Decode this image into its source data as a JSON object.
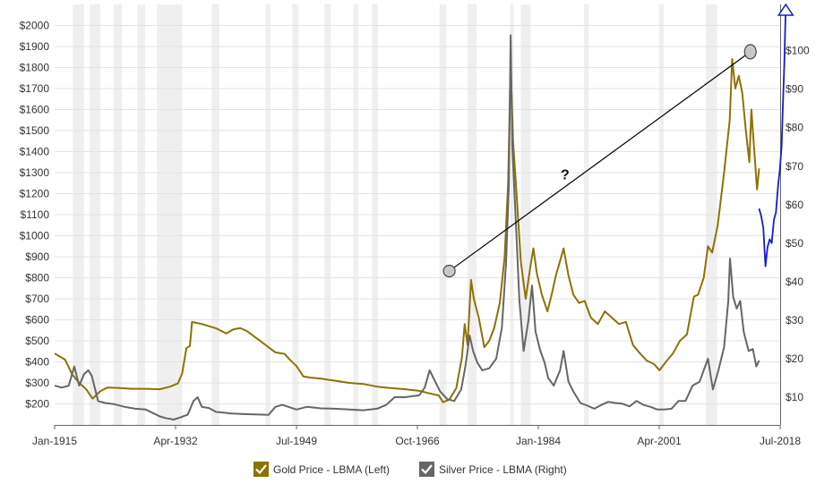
{
  "chart_data": {
    "type": "line",
    "x_range": [
      1915,
      2018.5
    ],
    "left_axis": {
      "ylim": [
        100,
        2100
      ],
      "ticks": [
        200,
        300,
        400,
        500,
        600,
        700,
        800,
        900,
        1000,
        1100,
        1200,
        1300,
        1400,
        1500,
        1600,
        1700,
        1800,
        1900,
        2000
      ],
      "tick_labels": [
        "$200",
        "$300",
        "$400",
        "$500",
        "$600",
        "$700",
        "$800",
        "$900",
        "$1000",
        "$1100",
        "$1200",
        "$1300",
        "$1400",
        "$1500",
        "$1600",
        "$1700",
        "$1800",
        "$1900",
        "$2000"
      ]
    },
    "right_axis": {
      "ylim": [
        2.8,
        112
      ],
      "ticks": [
        10,
        20,
        30,
        40,
        50,
        60,
        70,
        80,
        90,
        100
      ],
      "tick_labels": [
        "$10",
        "$20",
        "$30",
        "$40",
        "$50",
        "$60",
        "$70",
        "$80",
        "$90",
        "$100"
      ]
    },
    "x_ticks": [
      {
        "x": 1915.0,
        "label": "Jan-1915"
      },
      {
        "x": 1932.25,
        "label": "Apr-1932"
      },
      {
        "x": 1949.5,
        "label": "Jul-1949"
      },
      {
        "x": 1966.75,
        "label": "Oct-1966"
      },
      {
        "x": 1984.0,
        "label": "Jan-1984"
      },
      {
        "x": 2001.25,
        "label": "Apr-2001"
      },
      {
        "x": 2018.5,
        "label": "Jul-2018"
      }
    ],
    "recession_bands": [
      [
        1917.6,
        1919.2
      ],
      [
        1920.0,
        1921.5
      ],
      [
        1923.4,
        1924.6
      ],
      [
        1926.8,
        1927.9
      ],
      [
        1929.6,
        1933.2
      ],
      [
        1937.4,
        1938.5
      ],
      [
        1945.1,
        1945.8
      ],
      [
        1948.9,
        1949.8
      ],
      [
        1953.5,
        1954.4
      ],
      [
        1957.6,
        1958.3
      ],
      [
        1960.3,
        1961.1
      ],
      [
        1969.9,
        1970.9
      ],
      [
        1973.9,
        1975.2
      ],
      [
        1980.0,
        1980.5
      ],
      [
        1981.5,
        1982.9
      ],
      [
        1990.5,
        1991.2
      ],
      [
        2001.2,
        2001.9
      ],
      [
        2007.9,
        2009.5
      ]
    ],
    "series": [
      {
        "name": "Gold Price - LBMA (Left)",
        "color": "#8c7306",
        "axis": "left",
        "points": [
          [
            1915,
            440
          ],
          [
            1916.5,
            410
          ],
          [
            1917.5,
            340
          ],
          [
            1918.5,
            300
          ],
          [
            1919.5,
            270
          ],
          [
            1920.4,
            225
          ],
          [
            1921.5,
            260
          ],
          [
            1922.5,
            278
          ],
          [
            1924,
            276
          ],
          [
            1926,
            272
          ],
          [
            1928,
            272
          ],
          [
            1930,
            270
          ],
          [
            1931.5,
            282
          ],
          [
            1932.6,
            298
          ],
          [
            1933.2,
            345
          ],
          [
            1933.8,
            465
          ],
          [
            1934.3,
            475
          ],
          [
            1934.6,
            590
          ],
          [
            1936,
            580
          ],
          [
            1938,
            560
          ],
          [
            1939.5,
            535
          ],
          [
            1940.5,
            555
          ],
          [
            1941.5,
            560
          ],
          [
            1942.5,
            545
          ],
          [
            1943.5,
            520
          ],
          [
            1944.5,
            495
          ],
          [
            1945.5,
            470
          ],
          [
            1946.5,
            445
          ],
          [
            1947.8,
            438
          ],
          [
            1948.5,
            412
          ],
          [
            1949.5,
            380
          ],
          [
            1950.5,
            330
          ],
          [
            1951.5,
            325
          ],
          [
            1953,
            320
          ],
          [
            1955,
            310
          ],
          [
            1957,
            300
          ],
          [
            1959,
            295
          ],
          [
            1961,
            282
          ],
          [
            1963,
            275
          ],
          [
            1965,
            270
          ],
          [
            1967,
            262
          ],
          [
            1968.5,
            250
          ],
          [
            1969.8,
            240
          ],
          [
            1970.4,
            208
          ],
          [
            1971.3,
            220
          ],
          [
            1972.3,
            275
          ],
          [
            1973.1,
            420
          ],
          [
            1973.5,
            580
          ],
          [
            1973.9,
            480
          ],
          [
            1974.4,
            790
          ],
          [
            1974.8,
            700
          ],
          [
            1975.5,
            610
          ],
          [
            1976.3,
            470
          ],
          [
            1977,
            500
          ],
          [
            1977.7,
            560
          ],
          [
            1978.5,
            680
          ],
          [
            1979.2,
            900
          ],
          [
            1979.7,
            1250
          ],
          [
            1980.05,
            1820
          ],
          [
            1980.4,
            1450
          ],
          [
            1980.9,
            1200
          ],
          [
            1981.5,
            880
          ],
          [
            1982.2,
            700
          ],
          [
            1982.9,
            860
          ],
          [
            1983.3,
            940
          ],
          [
            1983.8,
            820
          ],
          [
            1984.5,
            720
          ],
          [
            1985.3,
            640
          ],
          [
            1985.9,
            720
          ],
          [
            1986.5,
            810
          ],
          [
            1987.1,
            880
          ],
          [
            1987.6,
            940
          ],
          [
            1988.3,
            810
          ],
          [
            1989,
            720
          ],
          [
            1989.8,
            680
          ],
          [
            1990.6,
            690
          ],
          [
            1991.5,
            610
          ],
          [
            1992.5,
            580
          ],
          [
            1993.5,
            640
          ],
          [
            1994.5,
            610
          ],
          [
            1995.5,
            580
          ],
          [
            1996.5,
            590
          ],
          [
            1997.5,
            480
          ],
          [
            1998.5,
            440
          ],
          [
            1999.5,
            405
          ],
          [
            2000.5,
            390
          ],
          [
            2001.3,
            360
          ],
          [
            2002.2,
            400
          ],
          [
            2003.2,
            440
          ],
          [
            2004.2,
            500
          ],
          [
            2005.2,
            530
          ],
          [
            2006.2,
            710
          ],
          [
            2006.8,
            720
          ],
          [
            2007.6,
            800
          ],
          [
            2008.2,
            950
          ],
          [
            2008.8,
            920
          ],
          [
            2009.6,
            1050
          ],
          [
            2010.5,
            1300
          ],
          [
            2011.3,
            1550
          ],
          [
            2011.65,
            1840
          ],
          [
            2012.1,
            1700
          ],
          [
            2012.6,
            1760
          ],
          [
            2013.1,
            1680
          ],
          [
            2013.6,
            1500
          ],
          [
            2014.1,
            1350
          ],
          [
            2014.4,
            1600
          ],
          [
            2014.6,
            1500
          ],
          [
            2015.2,
            1220
          ],
          [
            2015.5,
            1320
          ]
        ]
      },
      {
        "name": "Silver Price - LBMA (Right)",
        "color": "#666666",
        "axis": "right",
        "points": [
          [
            1915,
            13
          ],
          [
            1916,
            12.5
          ],
          [
            1917,
            13
          ],
          [
            1917.8,
            18
          ],
          [
            1918.5,
            13
          ],
          [
            1919.2,
            16
          ],
          [
            1919.8,
            17
          ],
          [
            1920.3,
            15.5
          ],
          [
            1921.2,
            9
          ],
          [
            1922.2,
            8.5
          ],
          [
            1923.5,
            8.2
          ],
          [
            1925,
            7.5
          ],
          [
            1926.5,
            7
          ],
          [
            1928,
            6.8
          ],
          [
            1930,
            5
          ],
          [
            1931,
            4.5
          ],
          [
            1932,
            4.2
          ],
          [
            1933,
            4.8
          ],
          [
            1934,
            5.5
          ],
          [
            1934.8,
            9
          ],
          [
            1935.4,
            10
          ],
          [
            1936,
            7.5
          ],
          [
            1937,
            7.2
          ],
          [
            1938,
            6.2
          ],
          [
            1940,
            5.8
          ],
          [
            1942,
            5.6
          ],
          [
            1944,
            5.5
          ],
          [
            1945.5,
            5.4
          ],
          [
            1946.5,
            7.5
          ],
          [
            1947.5,
            8
          ],
          [
            1949.5,
            6.8
          ],
          [
            1951,
            7.5
          ],
          [
            1953,
            7.1
          ],
          [
            1955,
            7
          ],
          [
            1957,
            6.8
          ],
          [
            1959,
            6.6
          ],
          [
            1961,
            7
          ],
          [
            1962.3,
            8
          ],
          [
            1963.5,
            10
          ],
          [
            1965,
            10
          ],
          [
            1967,
            10.5
          ],
          [
            1967.8,
            12.5
          ],
          [
            1968.5,
            17
          ],
          [
            1969.3,
            14
          ],
          [
            1970,
            11.5
          ],
          [
            1971,
            9.5
          ],
          [
            1972,
            9
          ],
          [
            1973,
            12
          ],
          [
            1973.6,
            18
          ],
          [
            1974.2,
            26
          ],
          [
            1974.7,
            22
          ],
          [
            1975.3,
            19
          ],
          [
            1976,
            17
          ],
          [
            1977,
            17.5
          ],
          [
            1978,
            20
          ],
          [
            1978.8,
            28
          ],
          [
            1979.4,
            45
          ],
          [
            1979.8,
            65
          ],
          [
            1980.05,
            104
          ],
          [
            1980.3,
            75
          ],
          [
            1980.8,
            55
          ],
          [
            1981.3,
            35
          ],
          [
            1981.9,
            22
          ],
          [
            1982.6,
            30
          ],
          [
            1983.1,
            39
          ],
          [
            1983.6,
            27
          ],
          [
            1984.3,
            22
          ],
          [
            1984.9,
            19
          ],
          [
            1985.4,
            15
          ],
          [
            1986.2,
            13
          ],
          [
            1987.1,
            17
          ],
          [
            1987.6,
            22
          ],
          [
            1988.3,
            14
          ],
          [
            1989,
            11.5
          ],
          [
            1990,
            8.5
          ],
          [
            1991,
            7.8
          ],
          [
            1992,
            7
          ],
          [
            1993,
            8
          ],
          [
            1994,
            8.8
          ],
          [
            1995,
            8.5
          ],
          [
            1996,
            8.3
          ],
          [
            1997,
            7.6
          ],
          [
            1998,
            9
          ],
          [
            1999,
            8
          ],
          [
            2000,
            7.5
          ],
          [
            2001,
            6.8
          ],
          [
            2002,
            6.8
          ],
          [
            2003,
            7
          ],
          [
            2004,
            9
          ],
          [
            2005,
            9
          ],
          [
            2006,
            13
          ],
          [
            2007,
            14
          ],
          [
            2008.2,
            20
          ],
          [
            2008.9,
            12
          ],
          [
            2009.7,
            17
          ],
          [
            2010.5,
            23
          ],
          [
            2011.1,
            35
          ],
          [
            2011.35,
            46
          ],
          [
            2011.8,
            36
          ],
          [
            2012.3,
            33
          ],
          [
            2012.8,
            35
          ],
          [
            2013.3,
            27
          ],
          [
            2014,
            22
          ],
          [
            2014.6,
            22.5
          ],
          [
            2015.1,
            18
          ],
          [
            2015.5,
            19.5
          ]
        ]
      },
      {
        "name": "",
        "color": "#1a1acc",
        "axis": "right",
        "points": [
          [
            2015.5,
            59
          ],
          [
            2015.8,
            57
          ],
          [
            2016.1,
            54
          ],
          [
            2016.4,
            44
          ],
          [
            2016.7,
            49
          ],
          [
            2017.0,
            51
          ],
          [
            2017.3,
            50
          ],
          [
            2017.6,
            56
          ],
          [
            2017.9,
            58
          ],
          [
            2018.2,
            65
          ],
          [
            2018.45,
            69
          ],
          [
            2018.7,
            75
          ],
          [
            2018.9,
            86
          ],
          [
            2019.1,
            97
          ],
          [
            2019.3,
            112
          ]
        ]
      }
    ],
    "annotation_label": "?",
    "annotation_line": [
      [
        1971.3,
        832
      ],
      [
        2014.25,
        1875
      ]
    ]
  },
  "legend": [
    {
      "label": "Gold Price - LBMA (Left)",
      "color": "#8c7306"
    },
    {
      "label": "Silver Price - LBMA (Right)",
      "color": "#666666"
    }
  ]
}
